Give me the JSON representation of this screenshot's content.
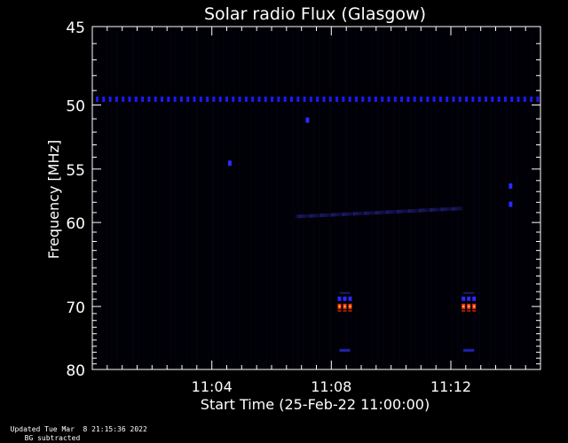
{
  "chart_data": {
    "type": "heatmap",
    "title": "Solar radio Flux (Glasgow)",
    "xlabel": "Start Time (25-Feb-22 11:00:00)",
    "ylabel": "Frequency [MHz]",
    "x_ticks": [
      "11:04",
      "11:08",
      "11:12"
    ],
    "x_tick_minutes": [
      4,
      8,
      12
    ],
    "xlim_minutes": [
      0,
      15
    ],
    "y_ticks": [
      45,
      50,
      55,
      60,
      70,
      80
    ],
    "ylim": [
      45,
      80
    ],
    "y_scale": "reciprocal",
    "background_color": "#000000",
    "axis_color": "#ffffff",
    "features": [
      {
        "kind": "rfi-line",
        "freq_mhz": 49.6,
        "color": "#1a1aff",
        "note": "dotted horizontal band across full time range"
      },
      {
        "kind": "drifting-band",
        "time_min": [
          6.8,
          12.3
        ],
        "freq_mhz": [
          59.4,
          58.6
        ],
        "color": "#1a1a66"
      },
      {
        "kind": "burst",
        "time_min": 8.45,
        "freq_mhz": [
          69.0,
          71.0
        ],
        "core_color": "#ff3300"
      },
      {
        "kind": "burst",
        "time_min": 12.6,
        "freq_mhz": [
          69.0,
          71.0
        ],
        "core_color": "#ff3300"
      },
      {
        "kind": "spot",
        "time_min": 4.6,
        "freq_mhz": 54.5,
        "color": "#2a2aff"
      },
      {
        "kind": "spot",
        "time_min": 7.2,
        "freq_mhz": 51.1,
        "color": "#2a2aff"
      },
      {
        "kind": "spot",
        "time_min": 14.0,
        "freq_mhz": 56.5,
        "color": "#2a2aff"
      },
      {
        "kind": "spot",
        "time_min": 14.0,
        "freq_mhz": 58.2,
        "color": "#2a2aff"
      }
    ]
  },
  "footer": {
    "updated": "Updated Tue Mar  8 21:15:36 2022",
    "note": "BG subtracted"
  }
}
